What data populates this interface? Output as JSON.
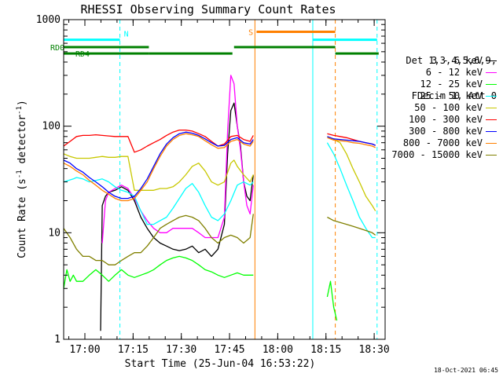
{
  "chart_data": {
    "type": "line",
    "title": "RHESSI Observing Summary Count Rates",
    "xlabel": "Start Time (25-Jun-04 16:53:22)",
    "ylabel_parts": [
      "Count Rate (s",
      "-1",
      " detector",
      "-1",
      ")"
    ],
    "x_unit": "minutes after 16:53:22",
    "xlim": [
      0,
      100
    ],
    "ylim": [
      1,
      1000
    ],
    "yscale": "log",
    "x_ticks": [
      {
        "label": "17:00",
        "value": 6.6
      },
      {
        "label": "17:15",
        "value": 21.6
      },
      {
        "label": "17:30",
        "value": 36.6
      },
      {
        "label": "17:45",
        "value": 51.6
      },
      {
        "label": "18:00",
        "value": 66.6
      },
      {
        "label": "18:15",
        "value": 81.6
      },
      {
        "label": "18:30",
        "value": 96.6
      }
    ],
    "y_ticks": [
      {
        "label": "1",
        "value": 1
      },
      {
        "label": "10",
        "value": 10
      },
      {
        "label": "100",
        "value": 100
      },
      {
        "label": "1000",
        "value": 1000
      }
    ],
    "legend_header": [
      "Det 1,3,4,5,6,9,",
      "FDecim 1, Att 0"
    ],
    "legend_position": "right",
    "series": [
      {
        "name": "3 - 6 keV",
        "color": "#000000",
        "x": [
          0,
          4,
          5,
          10,
          11,
          11.5,
          12,
          13,
          14,
          16,
          18,
          20,
          22,
          24,
          26,
          28,
          30,
          32,
          34,
          36,
          38,
          40,
          42,
          44,
          46,
          48,
          50,
          51,
          52,
          53,
          54,
          55,
          56,
          57,
          58,
          59
        ],
        "y": [
          null,
          null,
          null,
          null,
          null,
          1.2,
          18,
          22,
          24,
          25,
          27,
          25,
          20,
          14,
          11,
          9,
          8,
          7.5,
          7,
          6.8,
          7,
          7.5,
          6.5,
          7,
          6,
          7,
          12,
          55,
          140,
          165,
          100,
          65,
          30,
          22,
          20,
          35
        ]
      },
      {
        "name": "6 - 12 keV",
        "color": "#ff00ff",
        "x": [
          0,
          4,
          11,
          12,
          13,
          14,
          16,
          18,
          20,
          22,
          24,
          26,
          28,
          30,
          32,
          34,
          36,
          38,
          40,
          42,
          44,
          46,
          48,
          50,
          51,
          52,
          53,
          54,
          55,
          56,
          57,
          58,
          59
        ],
        "y": [
          null,
          null,
          null,
          8,
          20,
          24,
          26,
          28,
          26,
          21,
          16,
          13,
          11,
          10,
          10,
          11,
          11,
          11,
          11,
          10,
          9,
          9,
          9,
          14,
          90,
          300,
          250,
          100,
          60,
          30,
          18,
          15,
          28
        ]
      },
      {
        "name": "12 - 25 keV",
        "color": "#00ff00",
        "x": [
          0,
          1,
          2,
          3,
          4,
          6,
          8,
          10,
          12,
          14,
          16,
          18,
          20,
          22,
          24,
          26,
          28,
          30,
          32,
          34,
          36,
          38,
          40,
          42,
          44,
          46,
          48,
          50,
          52,
          54,
          56,
          58,
          59,
          82,
          83,
          84,
          85
        ],
        "y": [
          3,
          4.5,
          3.5,
          4,
          3.5,
          3.5,
          4,
          4.5,
          4,
          3.5,
          4,
          4.5,
          4,
          3.8,
          4,
          4.2,
          4.5,
          5,
          5.5,
          5.8,
          6,
          5.8,
          5.5,
          5,
          4.5,
          4.3,
          4,
          3.8,
          4,
          4.2,
          4,
          4,
          4,
          2.5,
          3.5,
          2,
          1.5
        ]
      },
      {
        "name": "25 - 50 keV",
        "color": "#00ffff",
        "x": [
          0,
          3,
          4,
          6,
          8,
          10,
          12,
          14,
          16,
          18,
          20,
          22,
          24,
          26,
          28,
          30,
          32,
          34,
          36,
          38,
          40,
          42,
          44,
          46,
          48,
          50,
          52,
          54,
          56,
          58,
          59,
          82,
          84,
          86,
          88,
          90,
          92,
          94,
          96,
          97
        ],
        "y": [
          30,
          32,
          33,
          32,
          30,
          31,
          32,
          30,
          27,
          25,
          24,
          22,
          16,
          12,
          12,
          13,
          14,
          17,
          21,
          26,
          29,
          24,
          18,
          14,
          13,
          15,
          20,
          28,
          30,
          28,
          30,
          70,
          55,
          40,
          28,
          20,
          14,
          11,
          9,
          9
        ]
      },
      {
        "name": "50 - 100 keV",
        "color": "#c8c800",
        "x": [
          0,
          2,
          4,
          6,
          8,
          10,
          12,
          14,
          16,
          18,
          20,
          22,
          24,
          26,
          28,
          30,
          32,
          34,
          36,
          38,
          40,
          42,
          44,
          46,
          48,
          50,
          52,
          53,
          54,
          56,
          58,
          59,
          82,
          84,
          86,
          88,
          90,
          92,
          94,
          96,
          97
        ],
        "y": [
          55,
          52,
          50,
          50,
          50,
          51,
          52,
          51,
          51,
          52,
          52,
          25,
          25,
          25,
          25,
          26,
          26,
          27,
          30,
          35,
          42,
          45,
          38,
          30,
          28,
          30,
          45,
          48,
          42,
          35,
          30,
          35,
          80,
          75,
          70,
          55,
          40,
          30,
          22,
          18,
          16
        ]
      },
      {
        "name": "100 - 300 keV",
        "color": "#ff0000",
        "x": [
          0,
          2,
          4,
          6,
          8,
          10,
          12,
          14,
          16,
          18,
          20,
          22,
          24,
          26,
          28,
          30,
          32,
          34,
          36,
          38,
          40,
          42,
          44,
          46,
          48,
          50,
          52,
          54,
          56,
          58,
          59,
          82,
          84,
          86,
          88,
          90,
          92,
          94,
          96,
          97
        ],
        "y": [
          65,
          72,
          80,
          82,
          82,
          83,
          82,
          81,
          80,
          80,
          80,
          57,
          60,
          65,
          70,
          75,
          82,
          88,
          92,
          92,
          90,
          85,
          80,
          72,
          65,
          68,
          80,
          82,
          75,
          72,
          82,
          85,
          82,
          80,
          78,
          75,
          72,
          70,
          68,
          66
        ]
      },
      {
        "name": "300 - 800 keV",
        "color": "#0000ff",
        "x": [
          0,
          2,
          4,
          6,
          8,
          10,
          12,
          14,
          16,
          18,
          20,
          22,
          24,
          26,
          28,
          30,
          32,
          34,
          36,
          38,
          40,
          42,
          44,
          46,
          48,
          50,
          52,
          54,
          56,
          58,
          59,
          82,
          84,
          86,
          88,
          90,
          92,
          94,
          96,
          97
        ],
        "y": [
          48,
          45,
          40,
          37,
          33,
          30,
          27,
          24,
          22,
          21,
          21,
          22,
          26,
          32,
          42,
          55,
          68,
          78,
          85,
          88,
          86,
          82,
          76,
          70,
          65,
          66,
          75,
          78,
          70,
          68,
          75,
          80,
          76,
          75,
          74,
          73,
          72,
          70,
          68,
          66
        ]
      },
      {
        "name": "800 - 7000 keV",
        "color": "#ff8000",
        "x": [
          0,
          2,
          4,
          6,
          8,
          10,
          12,
          14,
          16,
          18,
          20,
          22,
          24,
          26,
          28,
          30,
          32,
          34,
          36,
          38,
          40,
          42,
          44,
          46,
          48,
          50,
          52,
          54,
          56,
          58,
          59,
          82,
          84,
          86,
          88,
          90,
          92,
          94,
          96,
          97
        ],
        "y": [
          45,
          42,
          38,
          35,
          31,
          28,
          25,
          23,
          21,
          20,
          20,
          21,
          25,
          30,
          40,
          52,
          65,
          75,
          82,
          85,
          83,
          80,
          73,
          67,
          62,
          63,
          72,
          75,
          68,
          65,
          72,
          78,
          74,
          73,
          72,
          70,
          69,
          67,
          65,
          63
        ]
      },
      {
        "name": "7000 - 15000 keV",
        "color": "#808000",
        "x": [
          0,
          2,
          4,
          6,
          8,
          10,
          12,
          14,
          16,
          18,
          20,
          22,
          24,
          26,
          28,
          30,
          32,
          34,
          36,
          38,
          40,
          42,
          44,
          46,
          48,
          50,
          52,
          54,
          56,
          58,
          59,
          82,
          84,
          86,
          88,
          90,
          92,
          94,
          96,
          97
        ],
        "y": [
          11,
          9,
          7,
          6,
          6,
          5.5,
          5.5,
          5,
          5,
          5.5,
          6,
          6.5,
          6.5,
          7.5,
          9,
          11,
          12,
          13,
          14,
          14.5,
          14,
          13,
          11,
          9,
          8,
          9,
          9.5,
          9,
          8,
          9,
          15,
          14,
          13,
          12.5,
          12,
          11.5,
          11,
          10.5,
          10,
          9.5
        ]
      }
    ],
    "vertical_markers": [
      {
        "x": 0,
        "color": "#00ffff",
        "style": "solid"
      },
      {
        "x": 17.5,
        "color": "#00ffff",
        "style": "dashed"
      },
      {
        "x": 59.5,
        "color": "#ff8000",
        "style": "solid"
      },
      {
        "x": 77.5,
        "color": "#00ffff",
        "style": "solid"
      },
      {
        "x": 84.5,
        "color": "#ff8000",
        "style": "dashed"
      },
      {
        "x": 97.5,
        "color": "#00ffff",
        "style": "dashed"
      }
    ],
    "flag_bars": [
      {
        "label": "N",
        "color": "#00ffff",
        "y_frac": 0.063,
        "segments": [
          [
            0,
            17.5
          ],
          [
            77.5,
            97.5
          ]
        ]
      },
      {
        "label": "S",
        "color": "#ff8000",
        "y_frac": 0.038,
        "segments": [
          [
            60,
            84.5
          ]
        ]
      },
      {
        "label": "RD0",
        "color": "#008000",
        "y_frac": 0.086,
        "segments": [
          [
            0,
            26.5
          ],
          [
            53,
            84.5
          ]
        ]
      },
      {
        "label": "RD4",
        "color": "#008000",
        "y_frac": 0.106,
        "segments": [
          [
            0,
            26.5
          ],
          [
            26.5,
            52.5
          ],
          [
            84.5,
            98
          ]
        ]
      }
    ],
    "timestamp": "18-Oct-2021 06:45"
  }
}
